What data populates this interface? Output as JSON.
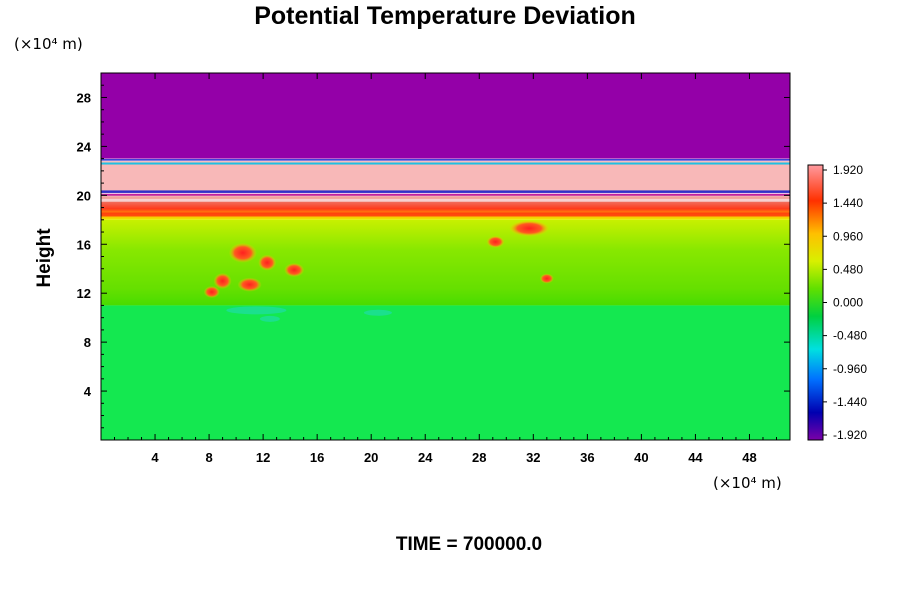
{
  "chart_data": {
    "type": "heatmap",
    "title": "Potential Temperature Deviation",
    "ylabel": "Height",
    "y_unit": "(×10⁴ m)",
    "x_unit": "(×10⁴ m)",
    "xlim": [
      0,
      51
    ],
    "ylim": [
      0,
      30
    ],
    "x_ticks": [
      "4",
      "8",
      "12",
      "16",
      "20",
      "24",
      "28",
      "32",
      "36",
      "40",
      "44",
      "48"
    ],
    "y_ticks": [
      "4",
      "8",
      "12",
      "16",
      "20",
      "24",
      "28"
    ],
    "colorbar": {
      "min": -1.92,
      "max": 1.92,
      "labels": [
        "1.920",
        "1.440",
        "0.960",
        "0.480",
        "0.000",
        "-0.480",
        "-0.960",
        "-1.440",
        "-1.920"
      ]
    },
    "layers": [
      {
        "y_from": 23.0,
        "y_to": 30.0,
        "value": -1.92
      },
      {
        "y_from": 20.2,
        "y_to": 22.8,
        "value": 1.92
      },
      {
        "y_from": 18.0,
        "y_to": 20.0,
        "value": 1.3
      },
      {
        "y_from": 11.0,
        "y_to": 18.0,
        "value": 0.2
      },
      {
        "y_from": 0.0,
        "y_to": 11.0,
        "value": -0.1
      }
    ],
    "footer": "TIME = 700000.0"
  }
}
